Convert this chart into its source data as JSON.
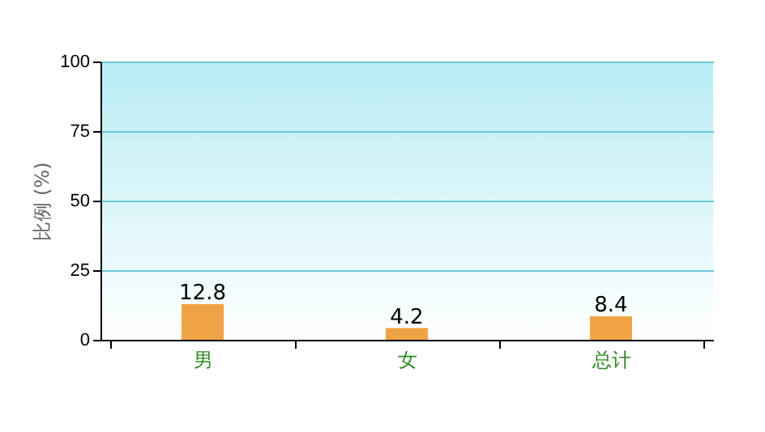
{
  "chart_data": {
    "type": "bar",
    "ylabel": "比例 (%)",
    "categories": [
      "男",
      "女",
      "总计"
    ],
    "values": [
      12.8,
      4.2,
      8.4
    ],
    "color": "#f0a345",
    "ylim": [
      0,
      100
    ],
    "yticks": [
      0,
      25,
      50,
      75,
      100
    ],
    "grid": "y",
    "data_labels": true
  }
}
